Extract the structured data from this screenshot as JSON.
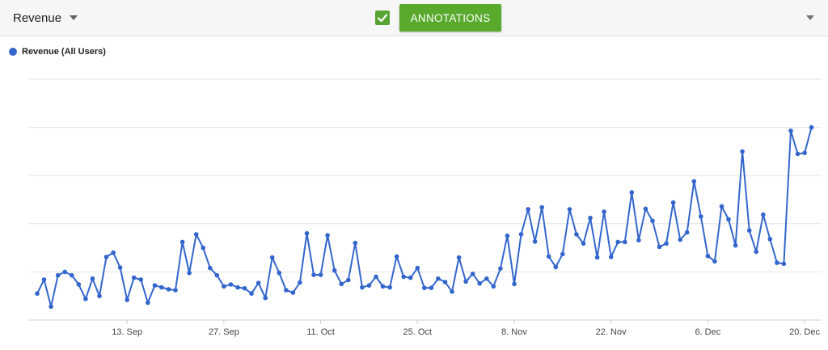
{
  "toolbar": {
    "metric_label": "Revenue",
    "annotations_checked": true,
    "annotations_label": "ANNOTATIONS"
  },
  "colors": {
    "series": "#3366cc",
    "accent": "#58a92c",
    "gridline": "#e6e6e6",
    "axis": "#cfcfcf"
  },
  "legend": {
    "label": "Revenue (All Users)"
  },
  "chart_data": {
    "type": "line",
    "title": "",
    "xlabel": "",
    "ylabel": "",
    "start_date": "2020-08-31",
    "ylim": [
      0,
      5
    ],
    "grid": true,
    "legend_position": "top-left",
    "x_ticks": [
      {
        "label": "13. Sep",
        "date": "2020-09-13"
      },
      {
        "label": "27. Sep",
        "date": "2020-09-27"
      },
      {
        "label": "11. Oct",
        "date": "2020-10-11"
      },
      {
        "label": "25. Oct",
        "date": "2020-10-25"
      },
      {
        "label": "8. Nov",
        "date": "2020-11-08"
      },
      {
        "label": "22. Nov",
        "date": "2020-11-22"
      },
      {
        "label": "6. Dec",
        "date": "2020-12-06"
      },
      {
        "label": "20. Dec",
        "date": "2020-12-20"
      }
    ],
    "series": [
      {
        "name": "Revenue (All Users)",
        "values": [
          0.55,
          0.84,
          0.28,
          0.93,
          1.0,
          0.93,
          0.74,
          0.44,
          0.86,
          0.5,
          1.31,
          1.4,
          1.09,
          0.42,
          0.88,
          0.84,
          0.36,
          0.72,
          0.68,
          0.64,
          0.62,
          1.62,
          0.98,
          1.78,
          1.5,
          1.08,
          0.93,
          0.7,
          0.74,
          0.68,
          0.66,
          0.55,
          0.77,
          0.46,
          1.3,
          0.98,
          0.62,
          0.57,
          0.78,
          1.8,
          0.94,
          0.94,
          1.76,
          1.03,
          0.75,
          0.83,
          1.6,
          0.68,
          0.72,
          0.9,
          0.7,
          0.68,
          1.32,
          0.9,
          0.88,
          1.08,
          0.67,
          0.67,
          0.86,
          0.79,
          0.59,
          1.3,
          0.8,
          0.96,
          0.76,
          0.86,
          0.7,
          1.07,
          1.75,
          0.75,
          1.78,
          2.3,
          1.63,
          2.34,
          1.32,
          1.1,
          1.37,
          2.3,
          1.78,
          1.59,
          2.12,
          1.3,
          2.25,
          1.31,
          1.62,
          1.62,
          2.65,
          1.66,
          2.31,
          2.06,
          1.52,
          1.59,
          2.44,
          1.67,
          1.82,
          2.88,
          2.15,
          1.33,
          1.22,
          2.36,
          2.09,
          1.55,
          3.5,
          1.86,
          1.42,
          2.19,
          1.68,
          1.19,
          1.17,
          3.93,
          3.45,
          3.47,
          4.0
        ]
      }
    ]
  }
}
